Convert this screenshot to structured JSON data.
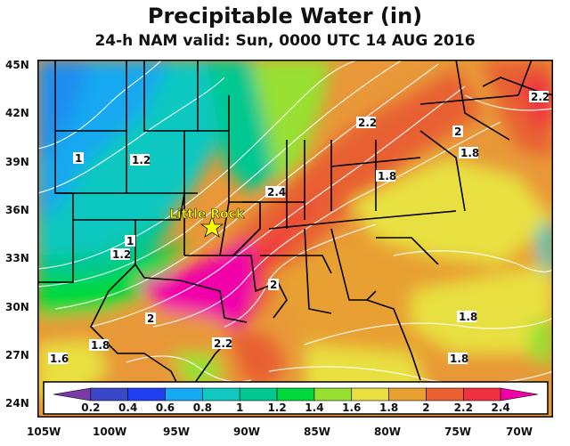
{
  "title": "Precipitable Water (in)",
  "subtitle": "24-h NAM valid: Sun, 0000 UTC 14 AUG 2016",
  "lat_labels": [
    "45N",
    "42N",
    "39N",
    "36N",
    "33N",
    "30N",
    "27N",
    "24N"
  ],
  "lon_labels": [
    "105W",
    "100W",
    "95W",
    "90W",
    "85W",
    "80W",
    "75W",
    "70W"
  ],
  "city": {
    "name": "Little Rock",
    "marker": "star-icon"
  },
  "contour_labels": [
    "2.2",
    "2.2",
    "1.8",
    "1.8",
    "2.4",
    "1",
    "1.2",
    "1",
    "1.2",
    "2",
    "2",
    "1.8",
    "1.8",
    "2.2",
    "1.6",
    "1.8",
    "2"
  ],
  "colorbar": {
    "ticks": [
      "0.2",
      "0.4",
      "0.6",
      "0.8",
      "1",
      "1.2",
      "1.4",
      "1.6",
      "1.8",
      "2",
      "2.2",
      "2.4"
    ],
    "colors": [
      "#7a3aa8",
      "#3a48c8",
      "#1f3ff0",
      "#16a8f0",
      "#10c8c0",
      "#00c890",
      "#00d83c",
      "#98e030",
      "#e8e040",
      "#e8a030",
      "#e86030",
      "#f03040",
      "#f000a8"
    ]
  }
}
